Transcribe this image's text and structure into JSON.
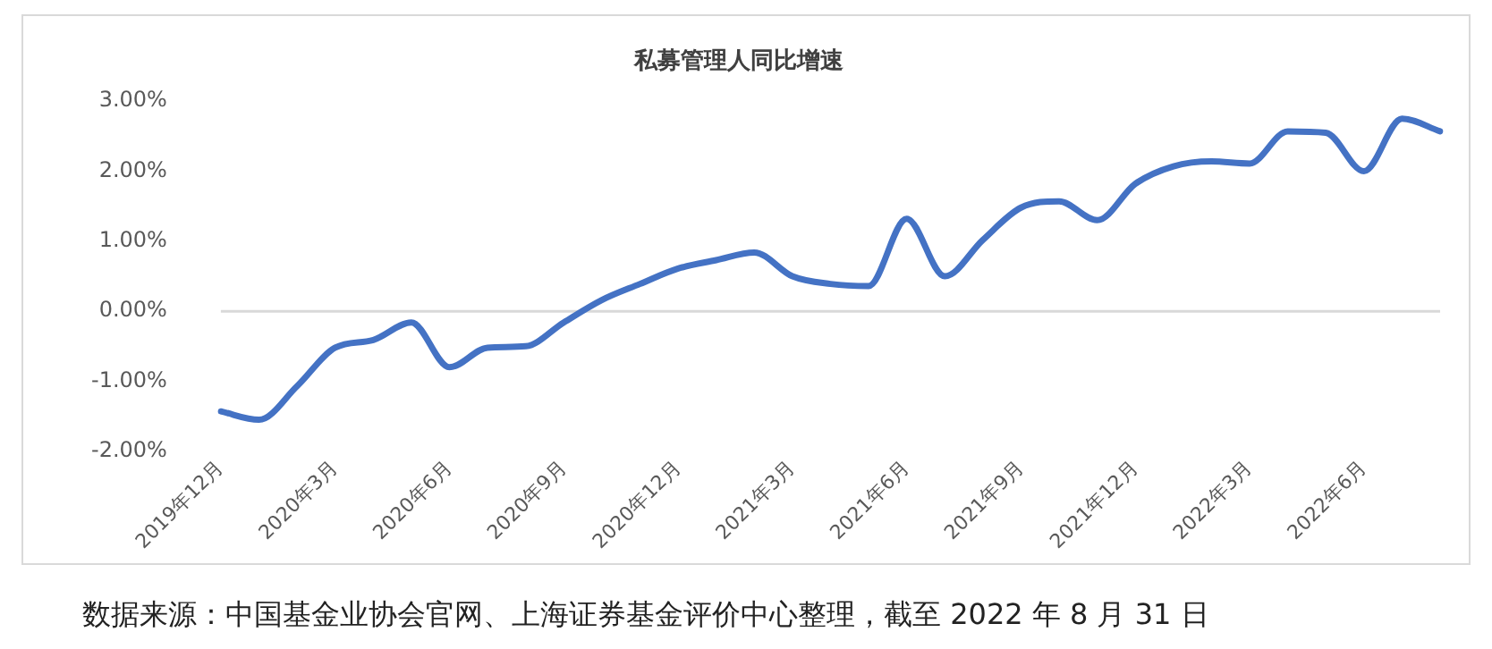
{
  "chart_data": {
    "type": "line",
    "title": "私募管理人同比增速",
    "categories": [
      "2019年12月",
      null,
      null,
      "2020年3月",
      null,
      null,
      "2020年6月",
      null,
      null,
      "2020年9月",
      null,
      null,
      "2020年12月",
      null,
      null,
      "2021年3月",
      null,
      null,
      "2021年6月",
      null,
      null,
      "2021年9月",
      null,
      null,
      "2021年12月",
      null,
      null,
      "2022年3月",
      null,
      null,
      "2022年6月",
      null,
      null
    ],
    "series": [
      {
        "color": "#4472c4",
        "values": [
          -1.43,
          -1.55,
          -1.07,
          -0.52,
          -0.41,
          -0.16,
          -0.8,
          -0.52,
          -0.5,
          -0.16,
          0.16,
          0.39,
          0.61,
          0.73,
          0.84,
          0.5,
          0.39,
          0.36,
          1.32,
          0.5,
          1.02,
          1.48,
          1.57,
          1.3,
          1.82,
          2.07,
          2.14,
          2.11,
          2.57,
          2.55,
          2.0,
          2.75,
          2.57
        ]
      }
    ],
    "ylim": [
      -2,
      3
    ],
    "yticks": [
      {
        "value": -2,
        "label": "-2.00%"
      },
      {
        "value": -1,
        "label": "-1.00%"
      },
      {
        "value": 0,
        "label": "0.00%"
      },
      {
        "value": 1,
        "label": "1.00%"
      },
      {
        "value": 2,
        "label": "2.00%"
      },
      {
        "value": 3,
        "label": "3.00%"
      }
    ],
    "ref_lines": [
      {
        "axis": "y",
        "value": 0,
        "color": "#d9d9d9"
      }
    ],
    "grid": false,
    "legend": false,
    "marker": "none",
    "line_style": "solid",
    "annotations": [
      "数据来源：中国基金业协会官网、上海证券基金评价中心整理，截至 2022 年 8 月 31 日"
    ]
  }
}
